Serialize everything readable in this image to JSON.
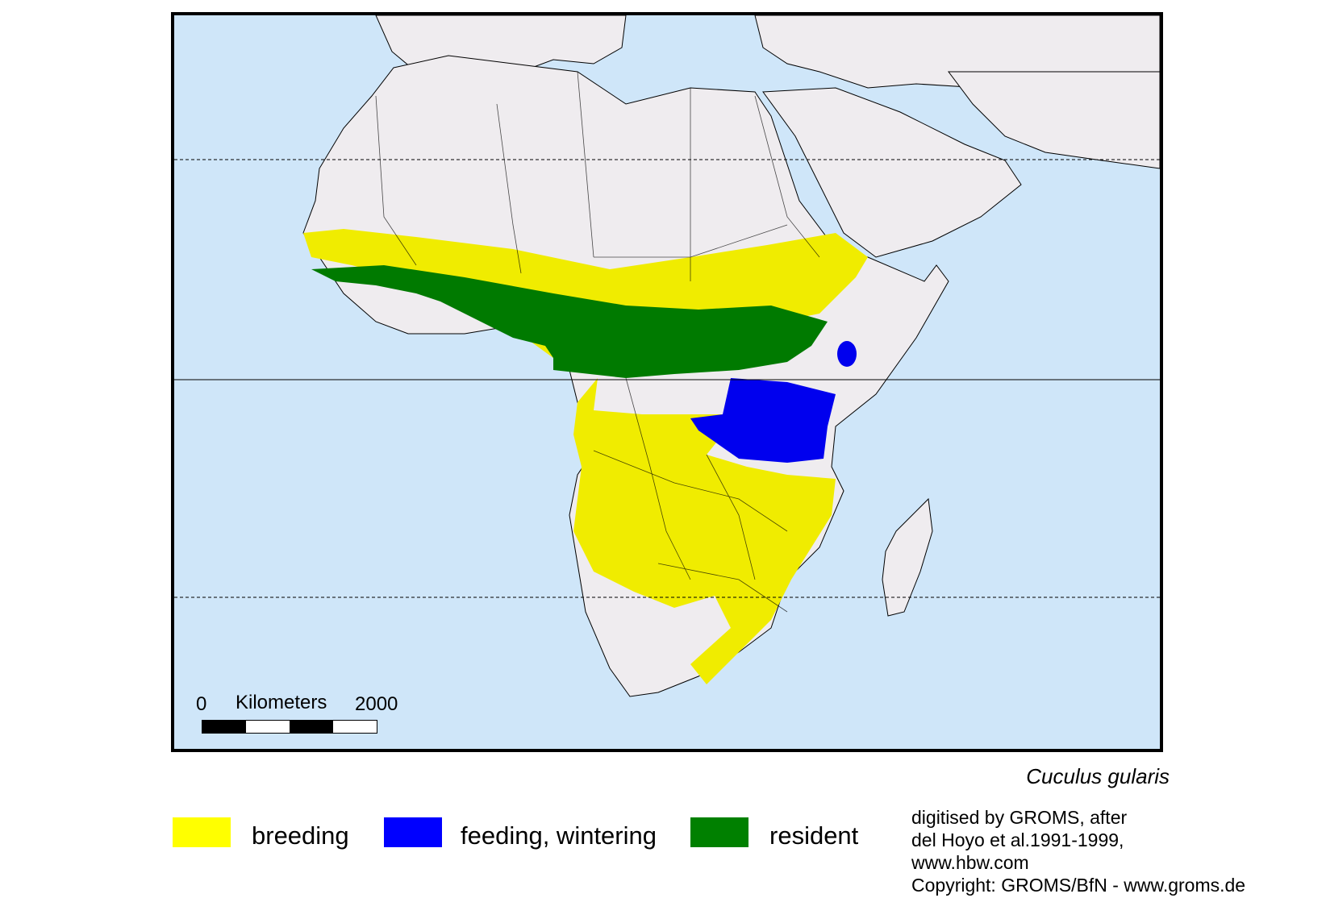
{
  "map": {
    "scale": {
      "start_label": "0",
      "unit_label": "Kilometers",
      "end_label": "2000"
    },
    "colors": {
      "ocean": "#cfe6f9",
      "land": "#efecef",
      "breeding": "#f0ec00",
      "feeding": "#0000ee",
      "resident": "#007a00"
    }
  },
  "species_name": "Cuculus gularis",
  "legend": [
    {
      "label": "breeding",
      "color": "#ffff00"
    },
    {
      "label": "feeding, wintering",
      "color": "#0000ff"
    },
    {
      "label": "resident",
      "color": "#008000"
    }
  ],
  "credits": {
    "line1": "digitised by GROMS, after",
    "line2": "del Hoyo et al.1991-1999,",
    "line3": "www.hbw.com",
    "line4": "Copyright: GROMS/BfN - www.groms.de"
  }
}
